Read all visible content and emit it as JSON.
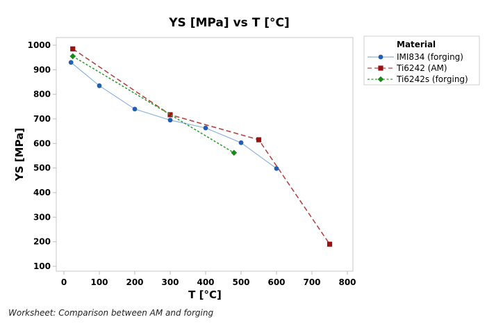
{
  "chart_data": {
    "type": "line",
    "title": "YS [MPa] vs T [°C]",
    "xlabel": "T [°C]",
    "ylabel": "YS [MPa]",
    "xlim": [
      -25,
      810
    ],
    "ylim": [
      70,
      1030
    ],
    "xticks": [
      0,
      100,
      200,
      300,
      400,
      500,
      600,
      700,
      800
    ],
    "yticks": [
      100,
      200,
      300,
      400,
      500,
      600,
      700,
      800,
      900,
      1000
    ],
    "grid": false,
    "legend": {
      "title": "Material",
      "placement": "right-outside-top"
    },
    "series": [
      {
        "name": "IMI834 (forging)",
        "color": "#1f5fb4",
        "line_color": "#8fb4e0",
        "line_style": "solid",
        "marker": "circle",
        "x": [
          20,
          100,
          200,
          300,
          400,
          500,
          600
        ],
        "y": [
          930,
          835,
          740,
          695,
          663,
          603,
          498
        ]
      },
      {
        "name": "Ti6242 (AM)",
        "color": "#9b1111",
        "line_color": "#b54545",
        "line_style": "dashed",
        "marker": "square",
        "x": [
          25,
          300,
          550,
          750
        ],
        "y": [
          985,
          717,
          615,
          190
        ]
      },
      {
        "name": "Ti6242s (forging)",
        "color": "#178a17",
        "line_color": "#2ea02e",
        "line_style": "dotted",
        "marker": "diamond",
        "x": [
          25,
          480
        ],
        "y": [
          955,
          562
        ]
      }
    ]
  },
  "footer": "Worksheet: Comparison between AM and forging"
}
